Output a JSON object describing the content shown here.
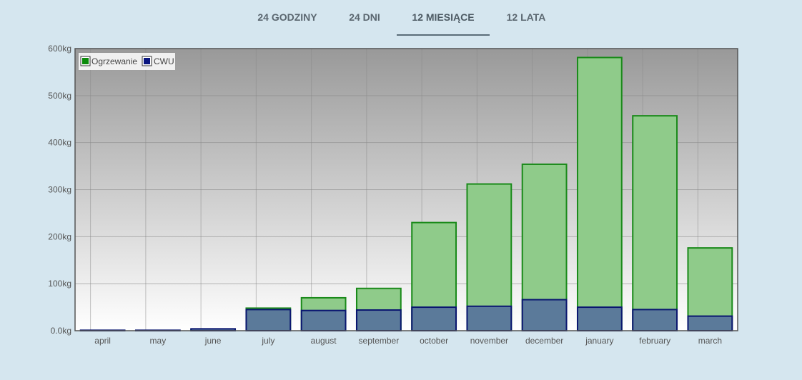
{
  "tabs": [
    {
      "label": "24 GODZINY",
      "active": false
    },
    {
      "label": "24 DNI",
      "active": false
    },
    {
      "label": "12 MIESIĄCE",
      "active": true
    },
    {
      "label": "12 LATA",
      "active": false
    }
  ],
  "colors": {
    "heating_fill": "#8fcb8a",
    "heating_stroke": "#1a8a1a",
    "legend_heating": "#0a8a0a",
    "cwu_fill": "#5b7a9a",
    "cwu_stroke": "#0a1670",
    "legend_cwu": "#0a1680"
  },
  "chart_data": {
    "type": "bar",
    "stacked": false,
    "categories": [
      "april",
      "may",
      "june",
      "july",
      "august",
      "september",
      "october",
      "november",
      "december",
      "january",
      "february",
      "march"
    ],
    "series": [
      {
        "name": "Ogrzewanie",
        "values": [
          0,
          0,
          2,
          48,
          70,
          90,
          230,
          312,
          354,
          581,
          457,
          176
        ]
      },
      {
        "name": "CWU",
        "values": [
          1,
          1,
          4,
          45,
          43,
          44,
          50,
          52,
          66,
          50,
          45,
          31
        ]
      }
    ],
    "yticks": [
      "0.0kg",
      "100kg",
      "200kg",
      "300kg",
      "400kg",
      "500kg",
      "600kg"
    ],
    "ylim": [
      0,
      600
    ],
    "grid": true,
    "legend_position": "top-left"
  }
}
